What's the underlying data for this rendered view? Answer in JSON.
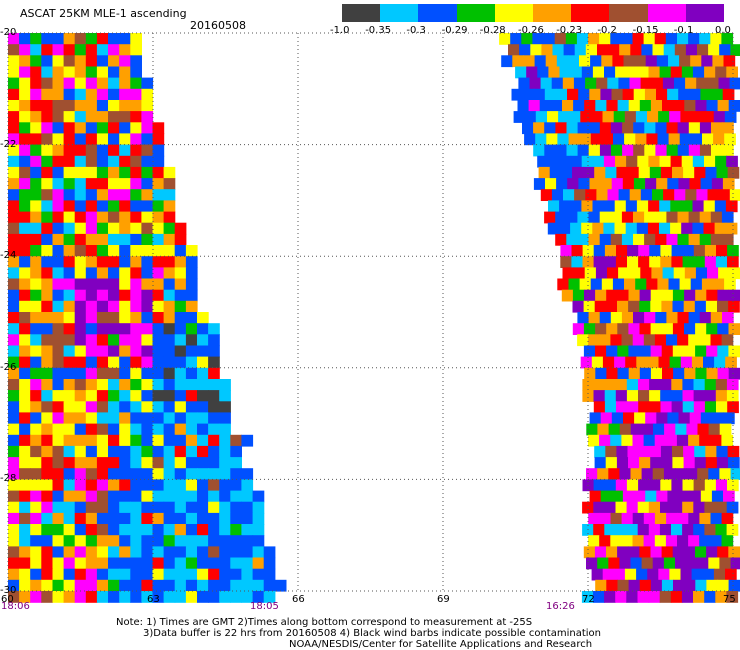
{
  "header": {
    "title": "ASCAT 25KM MLE-1 ascending",
    "date": "20160508"
  },
  "colorbar": {
    "colors": [
      "#404040",
      "#00c8ff",
      "#0050ff",
      "#00c000",
      "#ffff00",
      "#ffa000",
      "#ff0000",
      "#a05030",
      "#ff00ff",
      "#8000c0"
    ],
    "labels": [
      "-1.0",
      "-0.35",
      "-0.3",
      "-0.29",
      "-0.28",
      "-0.26",
      "-0.23",
      "-0.2",
      "-0.15",
      "-0.1",
      "0.0"
    ]
  },
  "axes": {
    "y_labels": [
      "-20",
      "-22",
      "-24",
      "-26",
      "-28",
      "-30"
    ],
    "x_labels": [
      "60",
      "63",
      "66",
      "69",
      "72",
      "75"
    ],
    "time_labels": [
      "18:06",
      "18:05",
      "16:26"
    ]
  },
  "notes": {
    "line1": "Note: 1) Times are GMT 2)Times along bottom correspond to measurement at -25S",
    "line2": "3)Data buffer is 22 hrs from 20160508 4) Black wind barbs indicate possible contamination",
    "line3": "NOAA/NESDIS/Center for Satellite Applications and Research"
  },
  "map": {
    "lon_range": [
      60,
      75
    ],
    "lat_range": [
      -30,
      -20
    ],
    "swaths": [
      {
        "name": "west",
        "lon_min": 60,
        "lon_max_top": 62.5,
        "lon_max_bottom": 65.6
      },
      {
        "name": "east",
        "lon_min_top": 70.2,
        "lon_min_bottom": 72.0,
        "lon_max": 75
      }
    ]
  }
}
